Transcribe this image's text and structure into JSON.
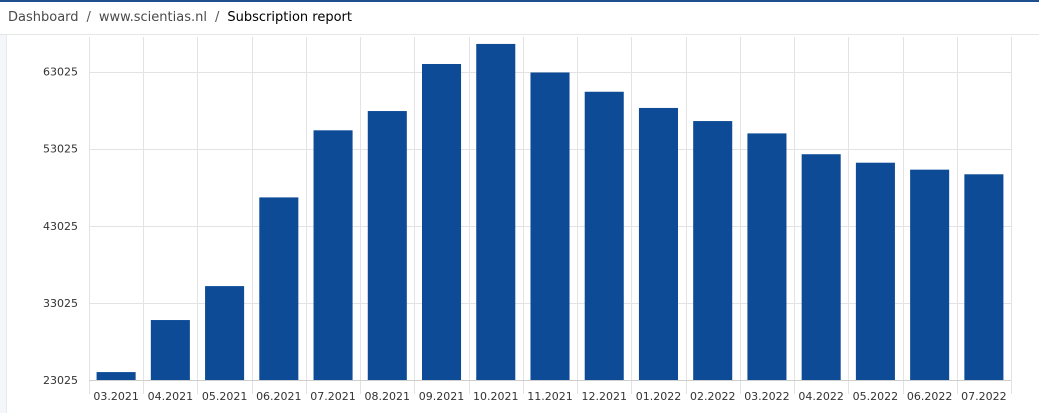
{
  "breadcrumb": {
    "items": [
      "Dashboard",
      "www.scientias.nl"
    ],
    "current": "Subscription report",
    "separator": "/"
  },
  "chart_data": {
    "type": "bar",
    "title": "",
    "xlabel": "",
    "ylabel": "",
    "categories": [
      "03.2021",
      "04.2021",
      "05.2021",
      "06.2021",
      "07.2021",
      "08.2021",
      "09.2021",
      "10.2021",
      "11.2021",
      "12.2021",
      "01.2022",
      "02.2022",
      "03.2022",
      "04.2022",
      "05.2022",
      "06.2022",
      "07.2022"
    ],
    "values": [
      24050,
      30800,
      35200,
      46700,
      55400,
      57900,
      64000,
      66600,
      62900,
      60400,
      58300,
      56600,
      55000,
      52300,
      51200,
      50300,
      49700
    ],
    "ylim": [
      23025,
      67500
    ],
    "yticks": [
      23025,
      33025,
      43025,
      53025,
      63025
    ],
    "grid": true,
    "legend": "none",
    "bar_color": "#0d4b96"
  }
}
